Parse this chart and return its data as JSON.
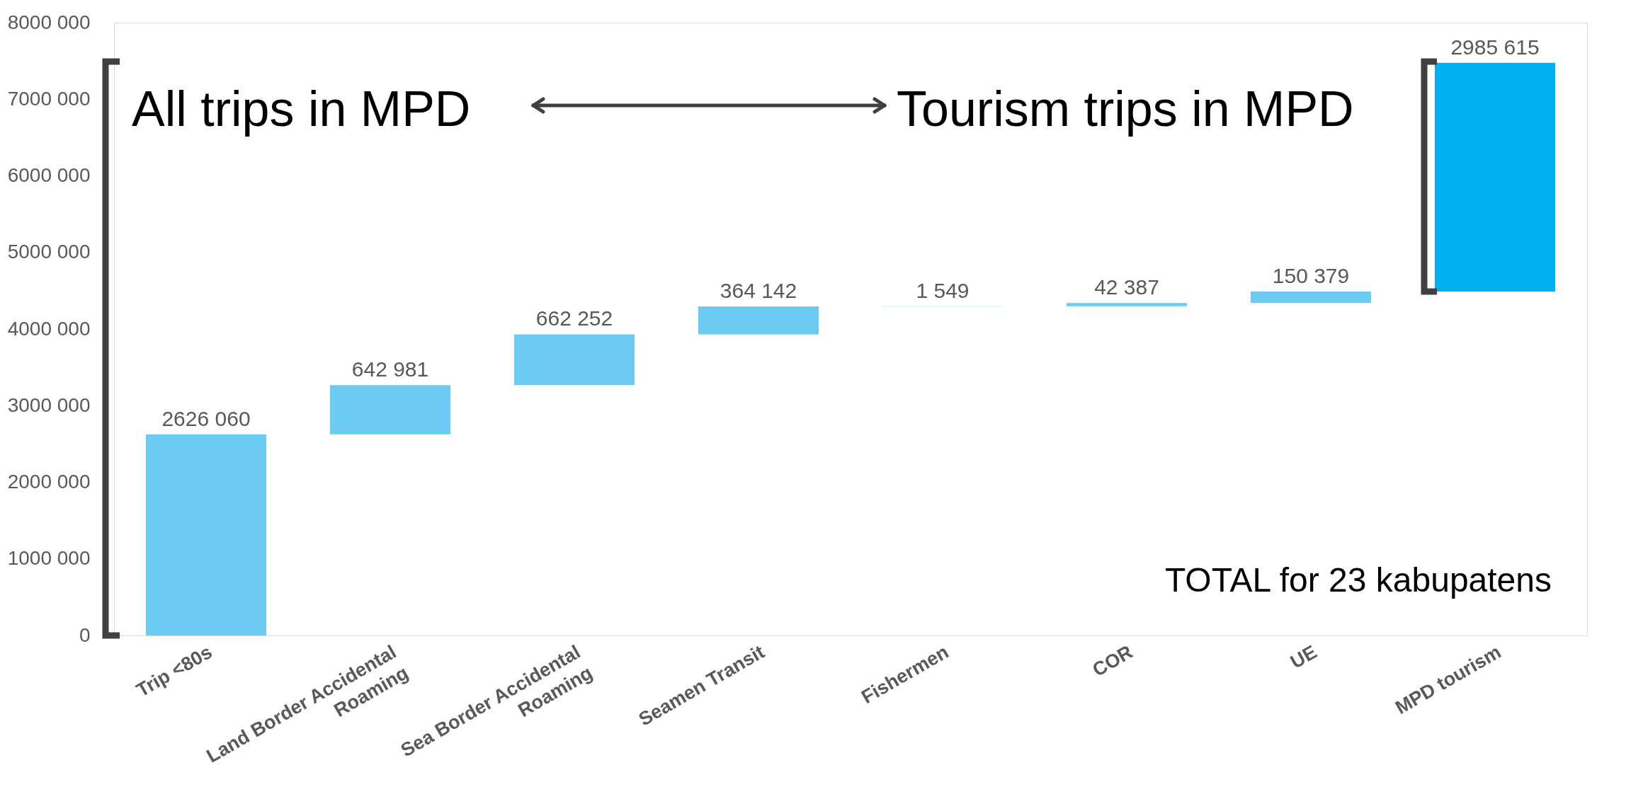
{
  "chart_data": {
    "type": "bar",
    "categories": [
      "Trip <80s",
      "Land Border Accidental Roaming",
      "Sea Border Accidental Roaming",
      "Seamen Transit",
      "Fishermen",
      "COR",
      "UE",
      "MPD tourism"
    ],
    "values": [
      2626060,
      642981,
      662252,
      364142,
      1549,
      42387,
      150379,
      2985615
    ],
    "base": [
      0,
      2626060,
      3269041,
      3931293,
      4295435,
      4296984,
      4339371,
      4489750
    ],
    "colors": [
      "#6ccbf2",
      "#6ccbf2",
      "#6ccbf2",
      "#6ccbf2",
      "#6ccbf2",
      "#6ccbf2",
      "#6ccbf2",
      "#00b0f0"
    ],
    "value_labels": [
      "2626 060",
      "642 981",
      "662 252",
      "364 142",
      "1 549",
      "42 387",
      "150 379",
      "2985 615"
    ],
    "ylim": [
      0,
      8000000
    ],
    "yticks": [
      {
        "value": 0,
        "label": "0"
      },
      {
        "value": 1000000,
        "label": "1000 000"
      },
      {
        "value": 2000000,
        "label": "2000 000"
      },
      {
        "value": 3000000,
        "label": "3000 000"
      },
      {
        "value": 4000000,
        "label": "4000 000"
      },
      {
        "value": 5000000,
        "label": "5000 000"
      },
      {
        "value": 6000000,
        "label": "6000 000"
      },
      {
        "value": 7000000,
        "label": "7000 000"
      },
      {
        "value": 8000000,
        "label": "8000 000"
      }
    ],
    "grid": false,
    "annotations": [
      "All trips in MPD",
      "Tourism trips in MPD",
      "TOTAL for 23 kabupatens"
    ]
  }
}
